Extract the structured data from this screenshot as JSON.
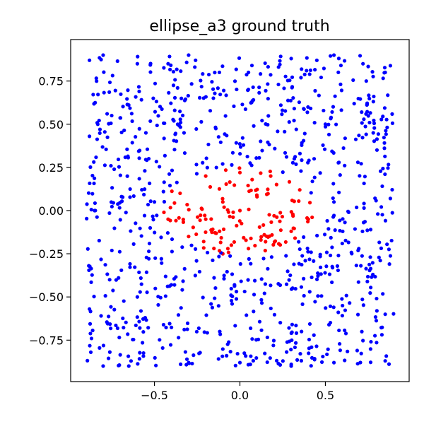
{
  "chart_data": {
    "type": "scatter",
    "title": "ellipse_a3 ground truth",
    "xlabel": "",
    "ylabel": "",
    "xlim": [
      -0.99,
      0.99
    ],
    "ylim": [
      -0.99,
      0.99
    ],
    "xticks": [
      -0.5,
      0.0,
      0.5
    ],
    "xtick_labels": [
      "−0.5",
      "0.0",
      "0.5"
    ],
    "yticks": [
      0.75,
      0.5,
      0.25,
      0.0,
      -0.25,
      -0.5,
      -0.75
    ],
    "ytick_labels": [
      "0.75",
      "0.50",
      "0.25",
      "0.00",
      "−0.25",
      "−0.50",
      "−0.75"
    ],
    "grid": false,
    "legend": "none",
    "colors": {
      "outside": "#0000ff",
      "inside": "#ff0000"
    },
    "region": {
      "shape": "ellipse",
      "center": [
        0.0,
        0.0
      ],
      "semi_axis_x": 0.45,
      "semi_axis_y": 0.25
    },
    "series": [
      {
        "class": "outside",
        "color": "#0000ff",
        "count": 880
      },
      {
        "class": "inside",
        "color": "#ff0000",
        "count": 120
      }
    ],
    "sample_points": [
      [
        -0.88,
        0.87,
        "outside"
      ],
      [
        -0.8,
        0.9,
        "outside"
      ],
      [
        -0.6,
        0.85,
        "outside"
      ],
      [
        -0.42,
        0.85,
        "outside"
      ],
      [
        -0.3,
        0.9,
        "outside"
      ],
      [
        -0.12,
        0.8,
        "outside"
      ],
      [
        0.05,
        0.8,
        "outside"
      ],
      [
        0.3,
        0.88,
        "outside"
      ],
      [
        0.45,
        0.87,
        "outside"
      ],
      [
        0.55,
        0.9,
        "outside"
      ],
      [
        0.72,
        0.85,
        "outside"
      ],
      [
        0.85,
        0.8,
        "outside"
      ],
      [
        -0.88,
        0.43,
        "outside"
      ],
      [
        -0.75,
        0.55,
        "outside"
      ],
      [
        -0.55,
        0.45,
        "outside"
      ],
      [
        0.5,
        0.5,
        "outside"
      ],
      [
        0.78,
        0.45,
        "outside"
      ],
      [
        -0.85,
        0.0,
        "outside"
      ],
      [
        -0.5,
        0.05,
        "outside"
      ],
      [
        0.55,
        0.05,
        "outside"
      ],
      [
        0.88,
        0.07,
        "outside"
      ],
      [
        -0.88,
        -0.57,
        "outside"
      ],
      [
        -0.6,
        -0.5,
        "outside"
      ],
      [
        0.6,
        -0.55,
        "outside"
      ],
      [
        0.85,
        -0.6,
        "outside"
      ],
      [
        -0.8,
        -0.9,
        "outside"
      ],
      [
        -0.65,
        -0.9,
        "outside"
      ],
      [
        -0.3,
        -0.88,
        "outside"
      ],
      [
        0.0,
        -0.88,
        "outside"
      ],
      [
        0.3,
        -0.9,
        "outside"
      ],
      [
        0.55,
        -0.88,
        "outside"
      ],
      [
        0.85,
        -0.87,
        "outside"
      ],
      [
        -0.2,
        0.2,
        "inside"
      ],
      [
        0.0,
        0.22,
        "inside"
      ],
      [
        0.18,
        0.2,
        "inside"
      ],
      [
        -0.35,
        0.1,
        "inside"
      ],
      [
        -0.1,
        0.05,
        "inside"
      ],
      [
        0.1,
        0.08,
        "inside"
      ],
      [
        0.35,
        0.12,
        "inside"
      ],
      [
        -0.42,
        -0.05,
        "inside"
      ],
      [
        -0.2,
        -0.05,
        "inside"
      ],
      [
        0.0,
        0.0,
        "inside"
      ],
      [
        0.2,
        -0.03,
        "inside"
      ],
      [
        0.4,
        -0.05,
        "inside"
      ],
      [
        -0.3,
        -0.15,
        "inside"
      ],
      [
        -0.05,
        -0.2,
        "inside"
      ],
      [
        0.15,
        -0.18,
        "inside"
      ],
      [
        0.3,
        -0.12,
        "inside"
      ],
      [
        -0.1,
        -0.25,
        "inside"
      ],
      [
        0.05,
        -0.22,
        "inside"
      ]
    ]
  }
}
